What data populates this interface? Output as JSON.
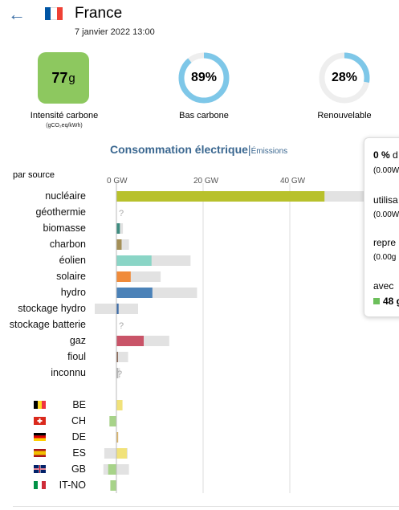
{
  "header": {
    "back_icon": "arrow-left-icon",
    "flag_colors": [
      "#0055a4",
      "#ffffff",
      "#ef4135"
    ],
    "country": "France",
    "datetime": "7 janvier 2022 13:00"
  },
  "stats": {
    "carbon_value": "77",
    "carbon_unit": "g",
    "carbon_label": "Intensité carbone",
    "carbon_unit_label": "(gCO₂eq/kWh)",
    "carbon_color": "#8dc85f",
    "low_carbon_value": "89%",
    "low_carbon_fraction": 0.89,
    "low_carbon_label": "Bas carbone",
    "renewable_value": "28%",
    "renewable_fraction": 0.28,
    "renewable_label": "Renouvelable",
    "donut_color": "#7ec7e8",
    "donut_track": "#eeeeee"
  },
  "tabs": {
    "active": "Consommation électrique",
    "separator": "|",
    "other": "Émissions"
  },
  "chart_data": {
    "type": "bar",
    "x_label": "par source",
    "x_ticks": [
      "0 GW",
      "20 GW",
      "40 GW"
    ],
    "x_tick_values": [
      0,
      20,
      40
    ],
    "unknown_mark": "?",
    "sources": [
      {
        "name": "nucléaire",
        "value": 48,
        "capacity": 61,
        "color": "#b8c12c"
      },
      {
        "name": "géothermie",
        "value": null,
        "capacity": null,
        "color": "#cccccc"
      },
      {
        "name": "biomasse",
        "value": 0.8,
        "capacity": 1.5,
        "color": "#3e8c80"
      },
      {
        "name": "charbon",
        "value": 1.2,
        "capacity": 2.9,
        "color": "#a48f57"
      },
      {
        "name": "éolien",
        "value": 8.1,
        "capacity": 17.1,
        "color": "#8ad5c6"
      },
      {
        "name": "solaire",
        "value": 3.3,
        "capacity": 10.2,
        "color": "#f08b3a"
      },
      {
        "name": "hydro",
        "value": 8.3,
        "capacity": 18.6,
        "color": "#4b82b8"
      },
      {
        "name": "stockage hydro",
        "value": 0.5,
        "capacity": 5.0,
        "neg_capacity": -5.0,
        "color": "#3c6ca8"
      },
      {
        "name": "stockage batterie",
        "value": null,
        "capacity": null,
        "color": "#cccccc"
      },
      {
        "name": "gaz",
        "value": 6.3,
        "capacity": 12.2,
        "color": "#c95468"
      },
      {
        "name": "fioul",
        "value": 0.2,
        "capacity": 2.7,
        "color": "#8c6b5b"
      },
      {
        "name": "inconnu",
        "value": 0.3,
        "capacity": 0.8,
        "color": "#b4b4b4"
      }
    ],
    "exchanges": [
      {
        "code": "BE",
        "flag": "be",
        "value": 1.4,
        "min": 0,
        "max": 1.4,
        "color": "#f1e27a"
      },
      {
        "code": "CH",
        "flag": "ch",
        "value": -1.6,
        "min": -1.6,
        "max": 0,
        "color": "#a7d389"
      },
      {
        "code": "DE",
        "flag": "de",
        "value": 0.4,
        "min": 0,
        "max": 0.4,
        "color": "#d9b36b"
      },
      {
        "code": "ES",
        "flag": "es",
        "value": 2.4,
        "min": -2.8,
        "max": 2.6,
        "color": "#f1e27a"
      },
      {
        "code": "GB",
        "flag": "gb",
        "value": -1.9,
        "min": -3.0,
        "max": 2.9,
        "color": "#a7d389"
      },
      {
        "code": "IT-NO",
        "flag": "it",
        "value": -1.4,
        "min": -1.4,
        "max": 0,
        "color": "#a7d389"
      }
    ]
  },
  "tooltip": {
    "line1_bold": "0 %",
    "line1_rest": " d",
    "line2": "(0.00W",
    "line3": "utilisa",
    "line4": "(0.00W",
    "line5": "repre",
    "line6": "(0.00g",
    "line7": "avec",
    "line8_bold": "48 g",
    "swatch_color": "#6cbf5b"
  }
}
